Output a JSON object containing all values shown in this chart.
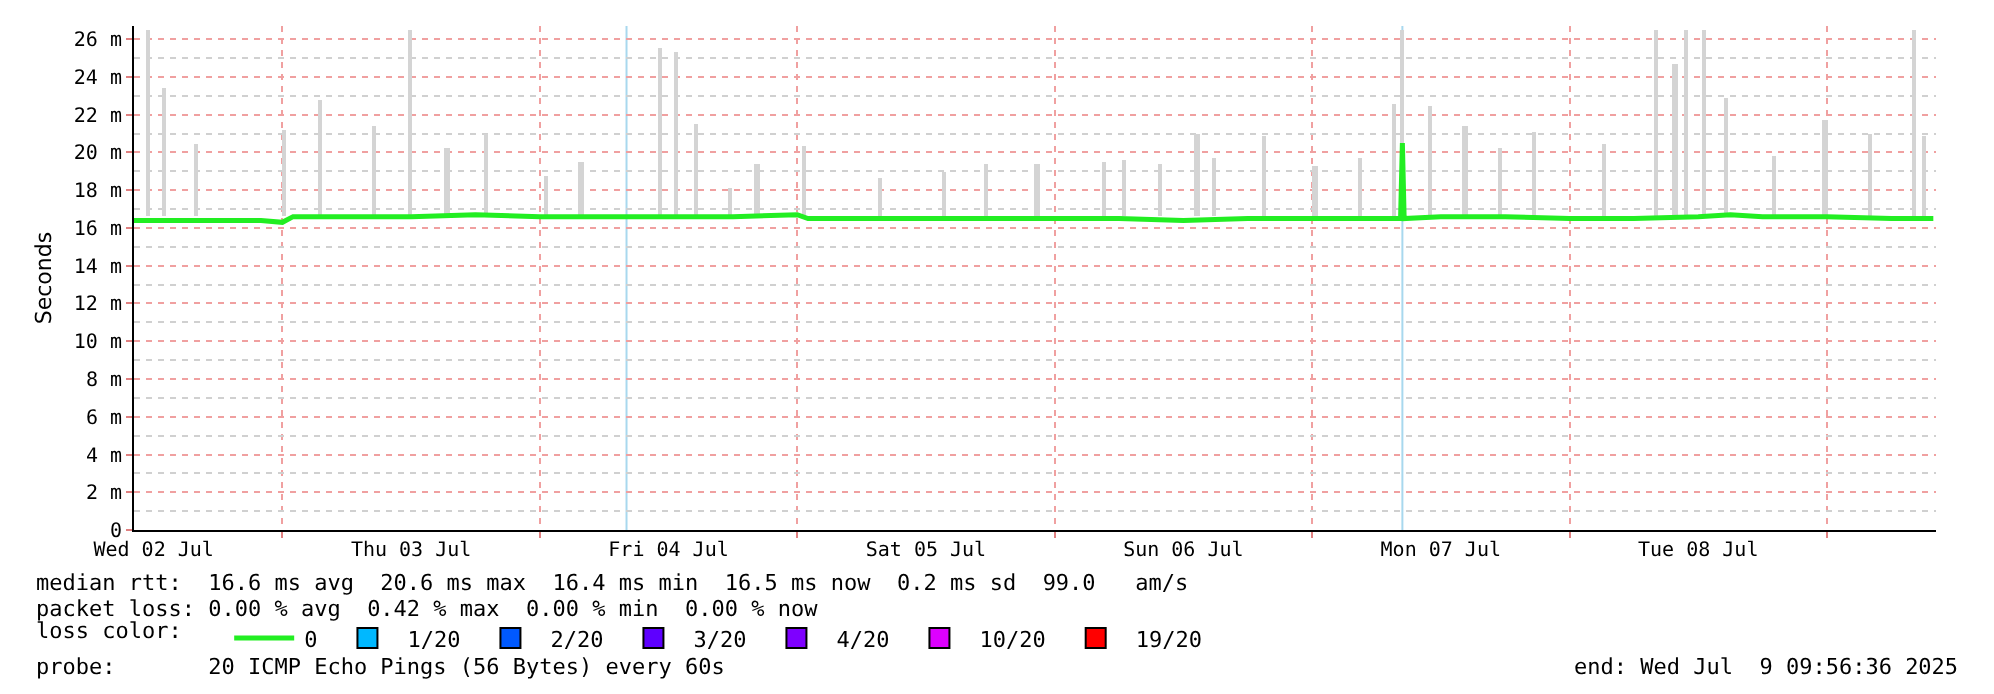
{
  "chart_data": {
    "type": "line",
    "ylabel": "Seconds",
    "legend_title": "loss color:",
    "legend": "bottom",
    "grid": true,
    "marker": "none",
    "line_style": "solid",
    "xlim": [
      "2025-07-02T10:10",
      "2025-07-09T10:10"
    ],
    "xticks": [
      {
        "value": "2025-07-02T12:00",
        "label": "Wed 02 Jul"
      },
      {
        "value": "2025-07-03T12:00",
        "label": "Thu 03 Jul"
      },
      {
        "value": "2025-07-04T12:00",
        "label": "Fri 04 Jul"
      },
      {
        "value": "2025-07-05T12:00",
        "label": "Sat 05 Jul"
      },
      {
        "value": "2025-07-06T12:00",
        "label": "Sun 06 Jul"
      },
      {
        "value": "2025-07-07T12:00",
        "label": "Mon 07 Jul"
      },
      {
        "value": "2025-07-08T12:00",
        "label": "Tue 08 Jul"
      },
      {
        "value": "2025-07-03T00:00",
        "label": null
      },
      {
        "value": "2025-07-04T00:00",
        "label": null
      },
      {
        "value": "2025-07-05T00:00",
        "label": null
      },
      {
        "value": "2025-07-06T00:00",
        "label": null
      },
      {
        "value": "2025-07-07T00:00",
        "label": null
      },
      {
        "value": "2025-07-08T00:00",
        "label": null
      },
      {
        "value": "2025-07-09T00:00",
        "label": null
      }
    ],
    "ylim": [
      0,
      26.7
    ],
    "yticks": [
      0,
      {
        "value": 2,
        "label": "2 m"
      },
      {
        "value": 4,
        "label": "4 m"
      },
      {
        "value": 6,
        "label": "6 m"
      },
      {
        "value": 8,
        "label": "8 m"
      },
      {
        "value": 10,
        "label": "10 m"
      },
      {
        "value": 12,
        "label": "12 m"
      },
      {
        "value": 14,
        "label": "14 m"
      },
      {
        "value": 16,
        "label": "16 m"
      },
      {
        "value": 18,
        "label": "18 m"
      },
      {
        "value": 20,
        "label": "20 m"
      },
      {
        "value": 22,
        "label": "22 m"
      },
      {
        "value": 24,
        "label": "24 m"
      },
      {
        "value": 26,
        "label": "26 m"
      }
    ],
    "ref_lines": [
      {
        "axis": "x",
        "value": "2025-07-04T08:05",
        "color": "#a8d8ee"
      },
      {
        "axis": "x",
        "value": "2025-07-07T08:25",
        "color": "#a8d8ee"
      }
    ],
    "series": [
      {
        "type": "bar",
        "color": "#d4d4d4",
        "x": [
          "2025-07-02T11:30",
          "2025-07-02T13:00",
          "2025-07-02T16:00",
          "2025-07-03T00:10",
          "2025-07-03T03:30",
          "2025-07-03T08:35",
          "2025-07-03T11:55",
          "2025-07-03T15:20",
          "2025-07-03T19:00",
          "2025-07-04T00:35",
          "2025-07-04T03:50",
          "2025-07-04T11:15",
          "2025-07-04T12:45",
          "2025-07-04T14:35",
          "2025-07-04T17:45",
          "2025-07-04T20:15",
          "2025-07-05T00:40",
          "2025-07-05T07:45",
          "2025-07-05T13:45",
          "2025-07-05T17:40",
          "2025-07-05T22:20",
          "2025-07-06T04:40",
          "2025-07-06T06:30",
          "2025-07-06T09:50",
          "2025-07-06T13:15",
          "2025-07-06T14:55",
          "2025-07-06T19:35",
          "2025-07-07T00:15",
          "2025-07-07T04:30",
          "2025-07-07T07:40",
          "2025-07-07T08:25",
          "2025-07-07T11:00",
          "2025-07-07T14:15",
          "2025-07-07T17:35",
          "2025-07-07T20:45",
          "2025-07-08T03:15",
          "2025-07-08T08:05",
          "2025-07-08T09:50",
          "2025-07-08T10:55",
          "2025-07-08T12:35",
          "2025-07-08T14:35",
          "2025-07-08T19:05",
          "2025-07-08T23:50",
          "2025-07-09T04:05",
          "2025-07-09T08:10",
          "2025-07-09T09:05"
        ],
        "base": [
          16.6,
          16.6,
          16.6,
          16.6,
          16.6,
          16.6,
          16.6,
          16.6,
          16.6,
          16.6,
          16.6,
          16.6,
          16.6,
          16.6,
          16.6,
          16.6,
          16.6,
          16.6,
          16.6,
          16.6,
          16.6,
          16.6,
          16.6,
          16.6,
          16.6,
          16.6,
          16.6,
          16.6,
          16.6,
          16.6,
          16.6,
          16.6,
          16.6,
          16.6,
          16.6,
          16.6,
          16.6,
          16.6,
          16.6,
          16.6,
          16.6,
          16.6,
          16.6,
          16.6,
          16.6,
          16.6
        ],
        "values": [
          9.9,
          6.8,
          3.9,
          4.6,
          6.2,
          4.8,
          9.9,
          3.6,
          4.4,
          2.2,
          2.9,
          8.9,
          8.7,
          4.9,
          1.5,
          2.8,
          3.7,
          2.0,
          2.4,
          2.8,
          2.8,
          2.9,
          3.0,
          2.8,
          4.4,
          3.1,
          4.3,
          2.7,
          3.1,
          6.0,
          9.9,
          5.9,
          4.8,
          3.6,
          4.5,
          3.9,
          9.9,
          8.1,
          9.9,
          9.9,
          6.3,
          3.2,
          5.1,
          4.4,
          9.9,
          4.3
        ]
      },
      {
        "name": "0",
        "color": "#22ee22",
        "x": [
          "2025-07-02T10:10",
          "2025-07-02T16:00",
          "2025-07-02T22:00",
          "2025-07-03T00:00",
          "2025-07-03T01:00",
          "2025-07-03T06:00",
          "2025-07-03T12:00",
          "2025-07-03T18:00",
          "2025-07-04T00:00",
          "2025-07-04T06:00",
          "2025-07-04T12:00",
          "2025-07-04T18:00",
          "2025-07-05T00:00",
          "2025-07-05T01:00",
          "2025-07-05T06:00",
          "2025-07-05T12:00",
          "2025-07-05T18:00",
          "2025-07-06T00:00",
          "2025-07-06T06:00",
          "2025-07-06T12:00",
          "2025-07-06T18:00",
          "2025-07-07T00:00",
          "2025-07-07T06:00",
          "2025-07-07T08:15",
          "2025-07-07T08:25",
          "2025-07-07T08:35",
          "2025-07-07T12:00",
          "2025-07-07T18:00",
          "2025-07-08T00:00",
          "2025-07-08T06:00",
          "2025-07-08T12:00",
          "2025-07-08T15:00",
          "2025-07-08T18:00",
          "2025-07-09T00:00",
          "2025-07-09T06:00",
          "2025-07-09T09:55"
        ],
        "values": [
          16.4,
          16.4,
          16.4,
          16.3,
          16.6,
          16.6,
          16.6,
          16.7,
          16.6,
          16.6,
          16.6,
          16.6,
          16.7,
          16.5,
          16.5,
          16.5,
          16.5,
          16.5,
          16.5,
          16.4,
          16.5,
          16.5,
          16.5,
          16.5,
          20.5,
          16.5,
          16.6,
          16.6,
          16.5,
          16.5,
          16.6,
          16.7,
          16.6,
          16.6,
          16.5,
          16.5
        ]
      },
      {
        "name": "1/20",
        "color": "#00b8ff"
      },
      {
        "name": "2/20",
        "color": "#0059ff"
      },
      {
        "name": "3/20",
        "color": "#5e00ff"
      },
      {
        "name": "4/20",
        "color": "#7e00ff"
      },
      {
        "name": "10/20",
        "color": "#dd00ff"
      },
      {
        "name": "19/20",
        "color": "#ff0000"
      }
    ],
    "annotations": [
      "median rtt:  16.6 ms avg  20.6 ms max  16.4 ms min  16.5 ms now  0.2 ms sd  99.0   am/s",
      "packet loss: 0.00 % avg  0.42 % max  0.00 % min  0.00 % now",
      "probe:       20 ICMP Echo Pings (56 Bytes) every 60s",
      "end: Wed Jul  9 09:56:36 2025"
    ]
  }
}
